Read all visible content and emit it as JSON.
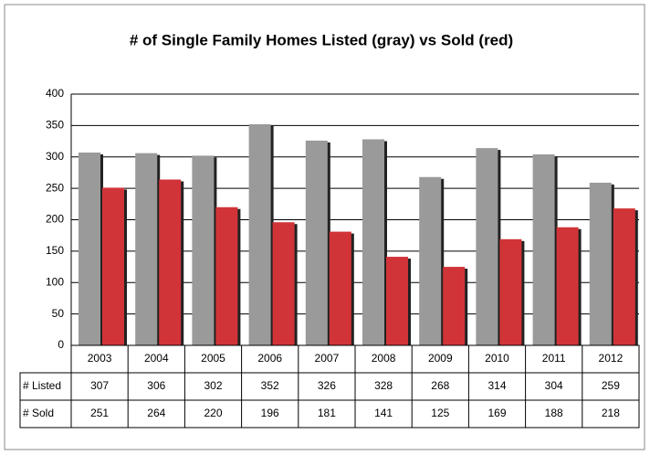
{
  "chart_data": {
    "type": "bar",
    "title": "# of Single Family Homes Listed (gray) vs Sold (red)",
    "categories": [
      "2003",
      "2004",
      "2005",
      "2006",
      "2007",
      "2008",
      "2009",
      "2010",
      "2011",
      "2012"
    ],
    "series": [
      {
        "name": "# Listed",
        "color": "#9a9a9a",
        "values": [
          307,
          306,
          302,
          352,
          326,
          328,
          268,
          314,
          304,
          259
        ]
      },
      {
        "name": "# Sold",
        "color": "#d13438",
        "values": [
          251,
          264,
          220,
          196,
          181,
          141,
          125,
          169,
          188,
          218
        ]
      }
    ],
    "ylim": [
      0,
      400
    ],
    "yticks": [
      0,
      50,
      100,
      150,
      200,
      250,
      300,
      350,
      400
    ],
    "grid": true
  }
}
